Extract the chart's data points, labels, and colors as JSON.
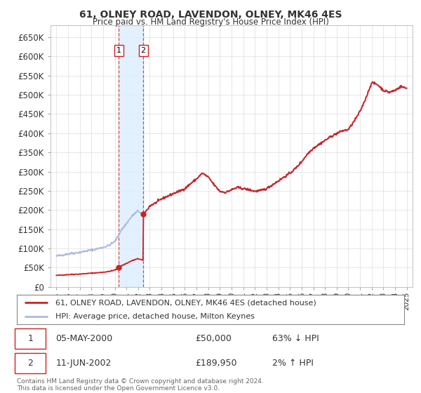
{
  "title": "61, OLNEY ROAD, LAVENDON, OLNEY, MK46 4ES",
  "subtitle": "Price paid vs. HM Land Registry's House Price Index (HPI)",
  "ylabel_ticks": [
    "£0",
    "£50K",
    "£100K",
    "£150K",
    "£200K",
    "£250K",
    "£300K",
    "£350K",
    "£400K",
    "£450K",
    "£500K",
    "£550K",
    "£600K",
    "£650K"
  ],
  "ytick_values": [
    0,
    50000,
    100000,
    150000,
    200000,
    250000,
    300000,
    350000,
    400000,
    450000,
    500000,
    550000,
    600000,
    650000
  ],
  "ylim": [
    0,
    680000
  ],
  "xlim_start": 1994.5,
  "xlim_end": 2025.5,
  "transaction1_date": 2000.35,
  "transaction1_price": 50000,
  "transaction2_date": 2002.44,
  "transaction2_price": 189950,
  "hpi_line_color": "#aabbdd",
  "price_line_color": "#cc2222",
  "marker_color": "#cc2222",
  "vline_color": "#cc2222",
  "shade_color": "#ddeeff",
  "grid_color": "#dddddd",
  "background_color": "#ffffff",
  "legend_label_red": "61, OLNEY ROAD, LAVENDON, OLNEY, MK46 4ES (detached house)",
  "legend_label_blue": "HPI: Average price, detached house, Milton Keynes",
  "table_row1_date": "05-MAY-2000",
  "table_row1_price": "£50,000",
  "table_row1_hpi": "63% ↓ HPI",
  "table_row2_date": "11-JUN-2002",
  "table_row2_price": "£189,950",
  "table_row2_hpi": "2% ↑ HPI",
  "footnote": "Contains HM Land Registry data © Crown copyright and database right 2024.\nThis data is licensed under the Open Government Licence v3.0.",
  "xtick_years": [
    1995,
    1996,
    1997,
    1998,
    1999,
    2000,
    2001,
    2002,
    2003,
    2004,
    2005,
    2006,
    2007,
    2008,
    2009,
    2010,
    2011,
    2012,
    2013,
    2014,
    2015,
    2016,
    2017,
    2018,
    2019,
    2020,
    2021,
    2022,
    2023,
    2024,
    2025
  ]
}
